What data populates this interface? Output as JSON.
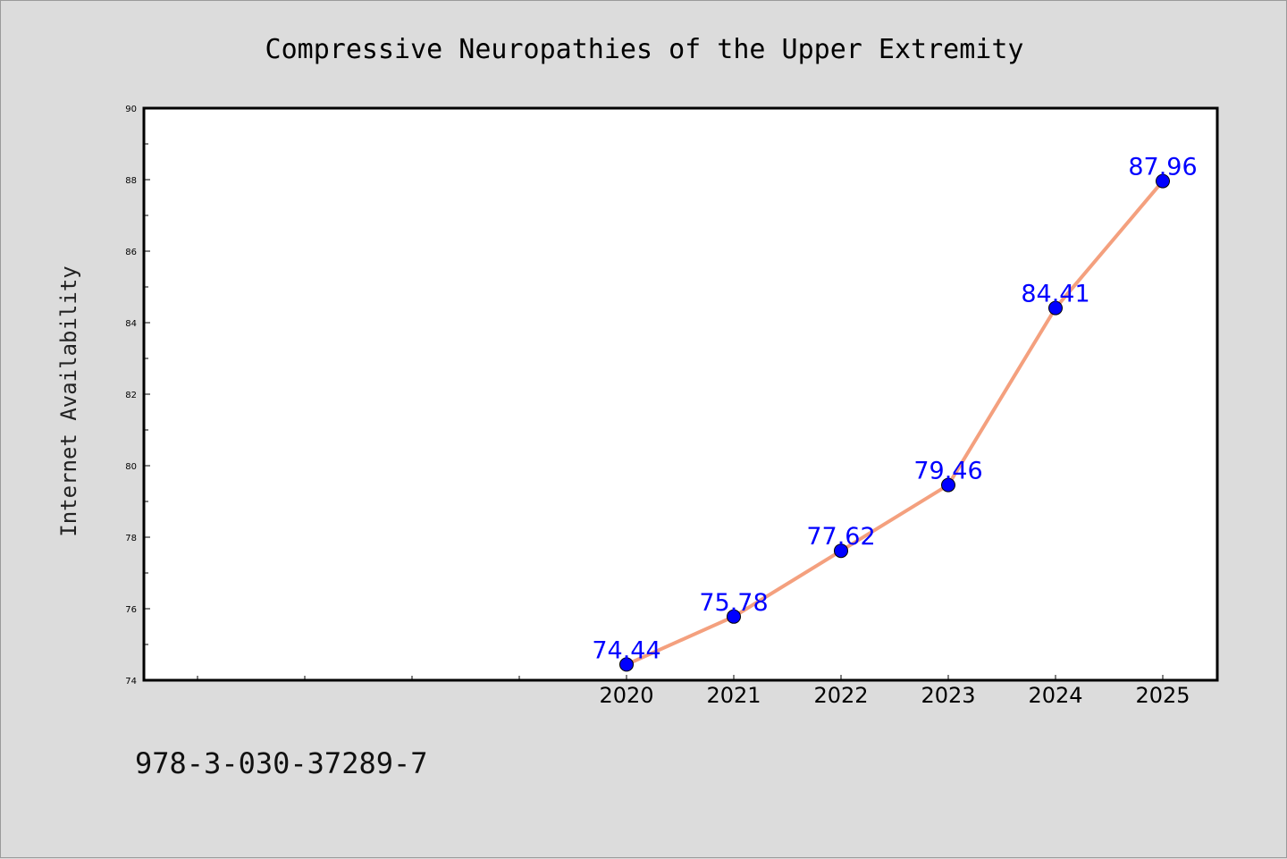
{
  "chart_data": {
    "type": "line",
    "title": "Compressive Neuropathies of the Upper Extremity",
    "xlabel": "",
    "ylabel": "Internet Availability",
    "x": [
      "2020",
      "2021",
      "2022",
      "2023",
      "2024",
      "2025"
    ],
    "series": [
      {
        "values": [
          74.44,
          75.78,
          77.62,
          79.46,
          84.41,
          87.96
        ]
      }
    ],
    "data_labels": [
      "74.44",
      "75.78",
      "77.62",
      "79.46",
      "84.41",
      "87.96"
    ],
    "ylim": [
      74,
      90
    ],
    "yticks": [
      "74",
      "76",
      "78",
      "80",
      "82",
      "84",
      "86",
      "88",
      "90"
    ],
    "grid": false,
    "legend": "none",
    "colors": {
      "line": "#f4a07e",
      "marker": "#0000ff",
      "data_label": "#0000ff",
      "plot_background": "#ffffff",
      "figure_background": "#dcdcdc"
    }
  },
  "caption": "978-3-030-37289-7"
}
